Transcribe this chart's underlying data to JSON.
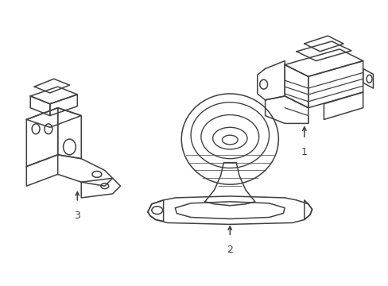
{
  "background_color": "#ffffff",
  "line_color": "#404040",
  "line_width": 1.1,
  "fig_width": 4.89,
  "fig_height": 3.6,
  "dpi": 100
}
